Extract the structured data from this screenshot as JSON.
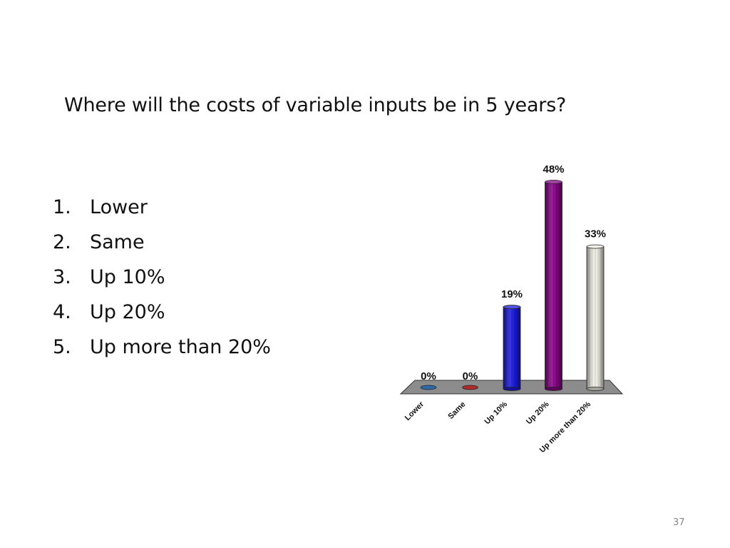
{
  "slide": {
    "question": "Where will the costs of variable inputs be in 5 years?",
    "options": [
      {
        "num": "1.",
        "label": "Lower"
      },
      {
        "num": "2.",
        "label": "Same"
      },
      {
        "num": "3.",
        "label": "Up 10%"
      },
      {
        "num": "4.",
        "label": "Up 20%"
      },
      {
        "num": "5.",
        "label": "Up more than 20%"
      }
    ],
    "page_number": "37"
  },
  "chart_data": {
    "type": "bar",
    "title": "",
    "xlabel": "",
    "ylabel": "",
    "categories": [
      "Lower",
      "Same",
      "Up 10%",
      "Up 20%",
      "Up more than 20%"
    ],
    "values": [
      0,
      0,
      19,
      48,
      33
    ],
    "value_labels": [
      "0%",
      "0%",
      "19%",
      "48%",
      "33%"
    ],
    "unit": "%",
    "ylim": [
      0,
      48
    ],
    "colors": [
      "#2f6aa8",
      "#b02a2a",
      "#1a1adc",
      "#880088",
      "#ecebe2"
    ],
    "floor_color": "#8c8c8c",
    "grid": false,
    "legend": "none"
  }
}
